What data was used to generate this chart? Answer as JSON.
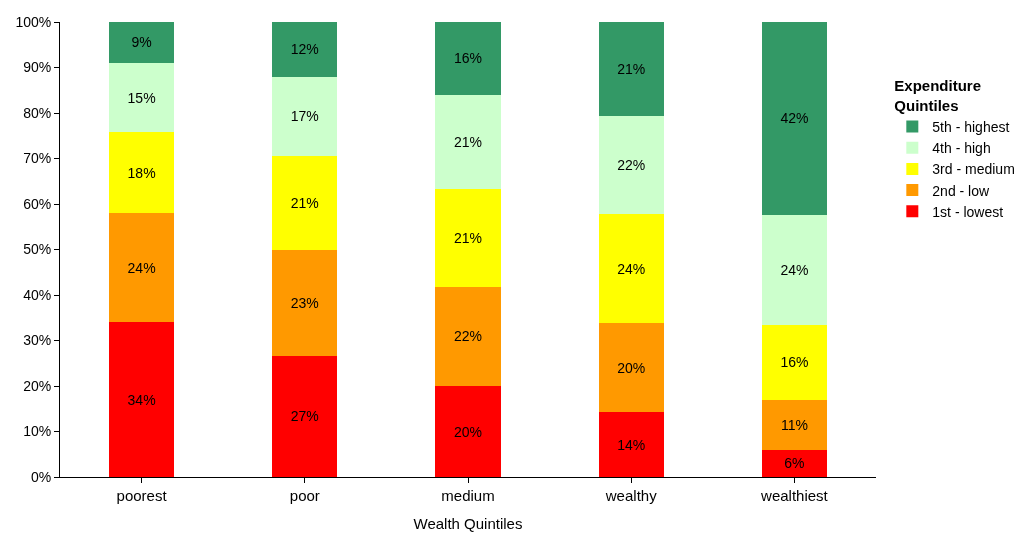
{
  "chart_data": {
    "type": "bar",
    "stacked": true,
    "xlabel": "Wealth Quintiles",
    "legend_title": "Expenditure Quintiles",
    "legend": "right",
    "grid": false,
    "categories": [
      "poorest",
      "poor",
      "medium",
      "wealthy",
      "wealthiest"
    ],
    "ylim": [
      0,
      100
    ],
    "yticks": [
      {
        "value": 0,
        "label": "0%"
      },
      {
        "value": 10,
        "label": "10%"
      },
      {
        "value": 20,
        "label": "20%"
      },
      {
        "value": 30,
        "label": "30%"
      },
      {
        "value": 40,
        "label": "40%"
      },
      {
        "value": 50,
        "label": "50%"
      },
      {
        "value": 60,
        "label": "60%"
      },
      {
        "value": 70,
        "label": "70%"
      },
      {
        "value": 80,
        "label": "80%"
      },
      {
        "value": 90,
        "label": "90%"
      },
      {
        "value": 100,
        "label": "100%"
      }
    ],
    "series": [
      {
        "name": "1st - lowest",
        "color": "#ff0000",
        "values": [
          34,
          26.6,
          20,
          14.2,
          6
        ],
        "value_labels": [
          "34%",
          "27%",
          "20%",
          "14%",
          "6%"
        ]
      },
      {
        "name": "2nd - low",
        "color": "#ff9900",
        "values": [
          24,
          23.2,
          21.8,
          19.6,
          11
        ],
        "value_labels": [
          "24%",
          "23%",
          "22%",
          "20%",
          "11%"
        ]
      },
      {
        "name": "3rd - medium",
        "color": "#ffff00",
        "values": [
          17.8,
          20.8,
          21.4,
          24,
          16.4
        ],
        "value_labels": [
          "18%",
          "21%",
          "21%",
          "24%",
          "16%"
        ]
      },
      {
        "name": "4th - high",
        "color": "#ccffcc",
        "values": [
          15.2,
          17.4,
          20.8,
          21.6,
          24.2
        ],
        "value_labels": [
          "15%",
          "17%",
          "21%",
          "22%",
          "24%"
        ]
      },
      {
        "name": "5th - highest",
        "color": "#339966",
        "values": [
          9,
          12,
          16,
          20.6,
          42.4
        ],
        "value_labels": [
          "9%",
          "12%",
          "16%",
          "21%",
          "42%"
        ]
      }
    ]
  }
}
